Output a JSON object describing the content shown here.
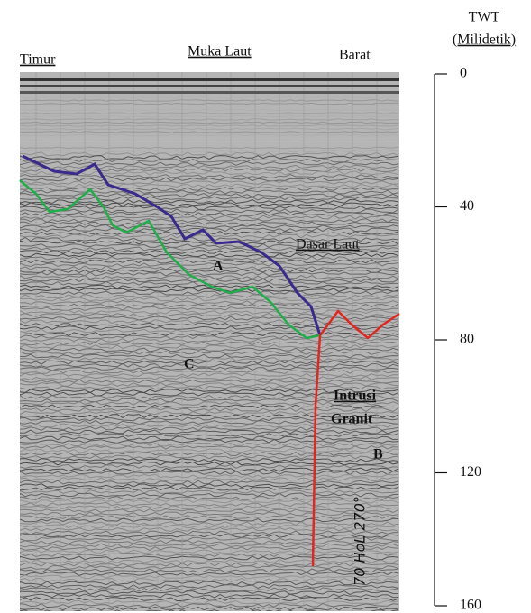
{
  "labels": {
    "east": "Timur",
    "sea_level": "Muka Laut",
    "west": "Barat",
    "seabed": "Dasar Laut",
    "a": "A",
    "c": "C",
    "intrusion_line1": "Intrusi",
    "intrusion_line2": "Granit",
    "b": "B",
    "handwritten": "70 HoL 270°"
  },
  "axis": {
    "title": [
      "TWT",
      "(Milidetik)"
    ],
    "lim": [
      0,
      160
    ],
    "ticks": [
      0,
      40,
      80,
      120,
      160
    ]
  }
}
